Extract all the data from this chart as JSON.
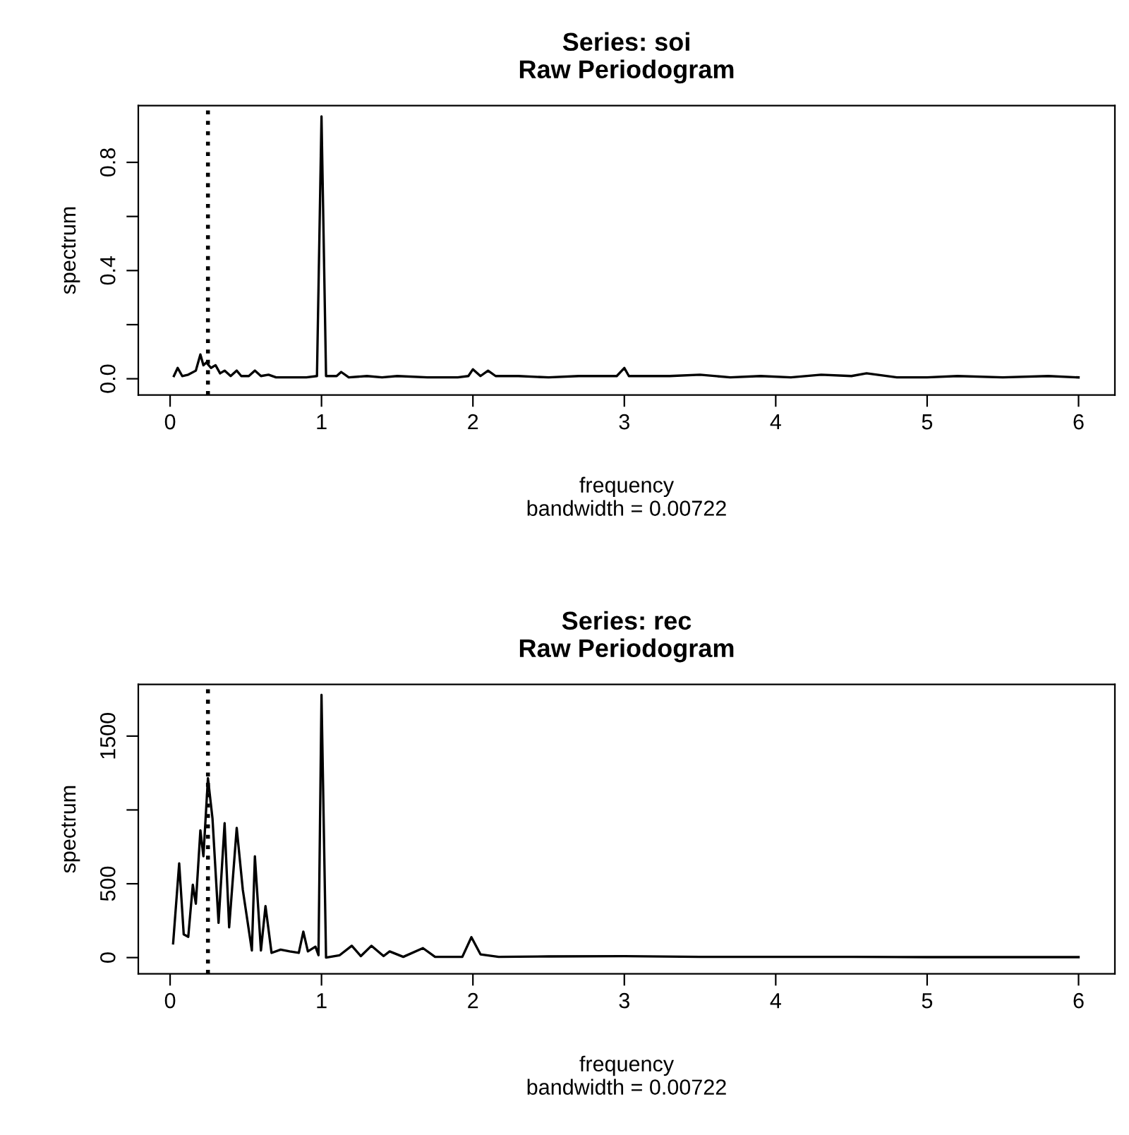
{
  "chart_data": [
    {
      "type": "line",
      "title": "Series: soi\nRaw Periodogram",
      "xlabel": "frequency\nbandwidth = 0.00722",
      "ylabel": "spectrum",
      "xlim": [
        -0.21,
        6.24
      ],
      "ylim": [
        -0.06,
        1.01
      ],
      "xticks": [
        0,
        1,
        2,
        3,
        4,
        5,
        6
      ],
      "yticks": [
        {
          "value": 0.0,
          "label": "0.0"
        },
        {
          "value": 0.2,
          "label": null
        },
        {
          "value": 0.4,
          "label": "0.4"
        },
        {
          "value": 0.6,
          "label": null
        },
        {
          "value": 0.8,
          "label": "0.8"
        }
      ],
      "ref_lines": [
        {
          "axis": "x",
          "value": 0.25,
          "label": null,
          "color": "#000000",
          "line_style": "dotted"
        }
      ],
      "series": [
        {
          "color": "#000000",
          "x": [
            0.025,
            0.05,
            0.08,
            0.12,
            0.17,
            0.2,
            0.22,
            0.24,
            0.27,
            0.3,
            0.33,
            0.36,
            0.4,
            0.44,
            0.47,
            0.52,
            0.56,
            0.6,
            0.65,
            0.7,
            0.8,
            0.9,
            0.97,
            1.0,
            1.03,
            1.1,
            1.13,
            1.18,
            1.3,
            1.4,
            1.5,
            1.7,
            1.9,
            1.97,
            2.0,
            2.05,
            2.1,
            2.15,
            2.3,
            2.5,
            2.7,
            2.85,
            2.95,
            3.0,
            3.03,
            3.3,
            3.5,
            3.7,
            3.9,
            4.1,
            4.3,
            4.5,
            4.6,
            4.8,
            5.0,
            5.2,
            5.5,
            5.8,
            6.0
          ],
          "values": [
            0.01,
            0.04,
            0.01,
            0.015,
            0.03,
            0.09,
            0.05,
            0.06,
            0.04,
            0.05,
            0.02,
            0.03,
            0.01,
            0.03,
            0.01,
            0.01,
            0.03,
            0.01,
            0.015,
            0.005,
            0.005,
            0.005,
            0.01,
            0.97,
            0.01,
            0.01,
            0.025,
            0.005,
            0.01,
            0.005,
            0.01,
            0.005,
            0.005,
            0.01,
            0.035,
            0.01,
            0.03,
            0.01,
            0.01,
            0.005,
            0.01,
            0.01,
            0.01,
            0.04,
            0.01,
            0.01,
            0.015,
            0.005,
            0.01,
            0.005,
            0.015,
            0.01,
            0.02,
            0.005,
            0.005,
            0.01,
            0.005,
            0.01,
            0.005
          ]
        }
      ]
    },
    {
      "type": "line",
      "title": "Series: rec\nRaw Periodogram",
      "xlabel": "frequency\nbandwidth = 0.00722",
      "ylabel": "spectrum",
      "xlim": [
        -0.21,
        6.24
      ],
      "ylim": [
        -110,
        1850
      ],
      "xticks": [
        0,
        1,
        2,
        3,
        4,
        5,
        6
      ],
      "yticks": [
        0,
        500,
        {
          "value": 1000,
          "label": null
        },
        1500
      ],
      "ref_lines": [
        {
          "axis": "x",
          "value": 0.25,
          "label": null,
          "color": "#000000",
          "line_style": "dotted"
        }
      ],
      "series": [
        {
          "color": "#000000",
          "x": [
            0.02,
            0.06,
            0.09,
            0.12,
            0.15,
            0.17,
            0.2,
            0.22,
            0.25,
            0.28,
            0.32,
            0.36,
            0.39,
            0.44,
            0.48,
            0.54,
            0.56,
            0.6,
            0.63,
            0.67,
            0.73,
            0.79,
            0.85,
            0.88,
            0.91,
            0.96,
            0.98,
            1.0,
            1.03,
            1.12,
            1.2,
            1.26,
            1.33,
            1.41,
            1.45,
            1.54,
            1.67,
            1.75,
            1.93,
            1.99,
            2.05,
            2.17,
            2.5,
            3.0,
            3.5,
            4.0,
            4.5,
            5.0,
            5.5,
            6.0
          ],
          "values": [
            96,
            638,
            157,
            141,
            494,
            365,
            862,
            686,
            1215,
            942,
            236,
            910,
            205,
            878,
            461,
            48,
            686,
            48,
            349,
            32,
            54,
            42,
            32,
            176,
            42,
            74,
            16,
            1779,
            0,
            16,
            80,
            10,
            80,
            10,
            42,
            5,
            64,
            5,
            5,
            138,
            22,
            5,
            8,
            10,
            5,
            5,
            5,
            3,
            3,
            3
          ]
        }
      ]
    }
  ]
}
